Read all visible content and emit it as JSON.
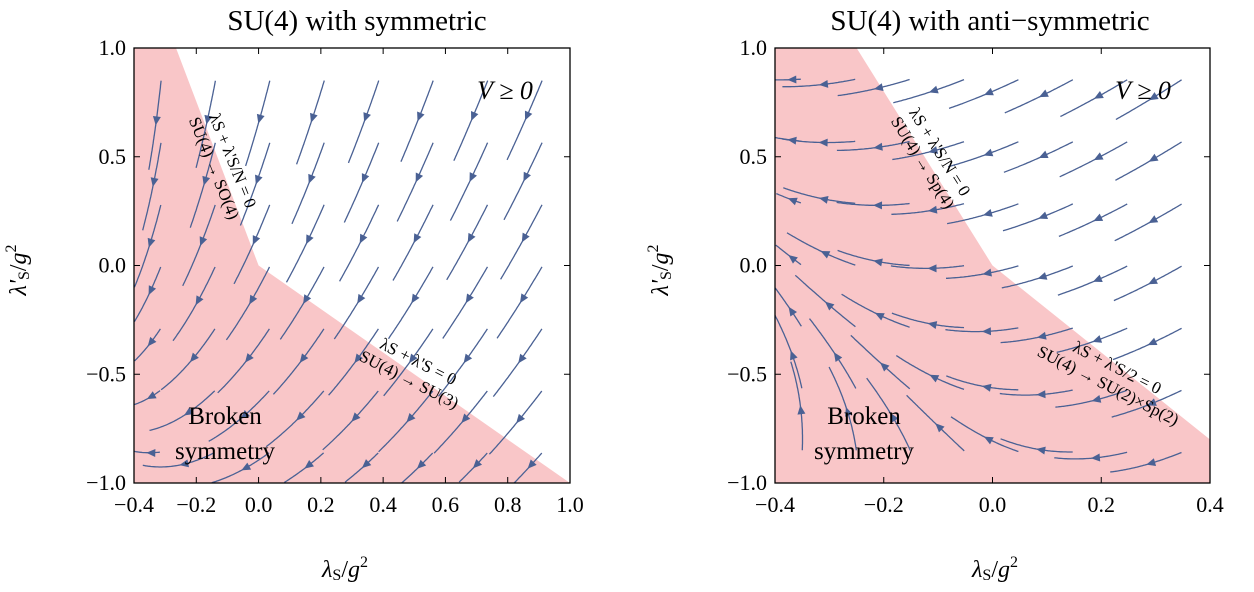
{
  "chart_data": [
    {
      "type": "streamplot",
      "title": "SU(4) with symmetric",
      "xlabel": "λS/g2",
      "ylabel": "λ'S/g2",
      "xlim": [
        -0.4,
        1.0
      ],
      "ylim": [
        -1.0,
        1.0
      ],
      "xticks": [
        "−0.4",
        "−0.2",
        "0.0",
        "0.2",
        "0.4",
        "0.6",
        "0.8",
        "1.0"
      ],
      "yticks": [
        "−1.0",
        "−0.5",
        "0.0",
        "0.5",
        "1.0"
      ],
      "xtick_values": [
        -0.4,
        -0.2,
        0.0,
        0.2,
        0.4,
        0.6,
        0.8,
        1.0
      ],
      "ytick_values": [
        -1.0,
        -0.5,
        0.0,
        0.5,
        1.0
      ],
      "broken_region": [
        [
          -0.4,
          1.0
        ],
        [
          -0.265,
          1.0
        ],
        [
          0.0,
          0.0
        ],
        [
          1.0,
          -1.0
        ],
        [
          -0.4,
          -1.0
        ]
      ],
      "region_labels": {
        "stable": "V ≥ 0",
        "broken_line1": "Broken",
        "broken_line2": "symmetry"
      },
      "boundary_annotations": [
        {
          "line1": "λS + λ'S/N = 0",
          "line2": "SU(4) → SO(4)"
        },
        {
          "line1": "λS + λ'S = 0",
          "line2": "SU(4) → SU(3)"
        }
      ],
      "flow": {
        "description": "RG flow streamlines (arrows point toward IR)"
      }
    },
    {
      "type": "streamplot",
      "title": "SU(4) with anti−symmetric",
      "xlabel": "λS/g2",
      "ylabel": "λ'S/g2",
      "xlim": [
        -0.4,
        0.4
      ],
      "ylim": [
        -1.0,
        1.0
      ],
      "xticks": [
        "−0.4",
        "−0.2",
        "0.0",
        "0.2",
        "0.4"
      ],
      "yticks": [
        "−1.0",
        "−0.5",
        "0.0",
        "0.5",
        "1.0"
      ],
      "xtick_values": [
        -0.4,
        -0.2,
        0.0,
        0.2,
        0.4
      ],
      "ytick_values": [
        -1.0,
        -0.5,
        0.0,
        0.5,
        1.0
      ],
      "broken_region": [
        [
          -0.4,
          1.0
        ],
        [
          -0.25,
          1.0
        ],
        [
          0.0,
          0.0
        ],
        [
          0.4,
          -0.8
        ],
        [
          0.4,
          -1.0
        ],
        [
          -0.4,
          -1.0
        ]
      ],
      "region_labels": {
        "stable": "V ≥ 0",
        "broken_line1": "Broken",
        "broken_line2": "symmetry"
      },
      "boundary_annotations": [
        {
          "line1": "λS + λ'S/N = 0",
          "line2": "SU(4) → Sp(4)"
        },
        {
          "line1": "λS + λ'S/2 = 0",
          "line2": "SU(4) → SU(2)×Sp(2)"
        }
      ],
      "flow": {
        "description": "RG flow streamlines (arrows point toward IR)"
      }
    }
  ]
}
